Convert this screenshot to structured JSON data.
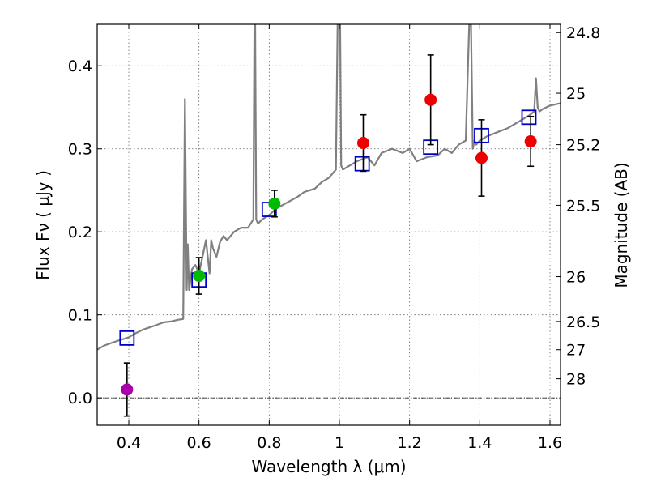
{
  "chart_data": {
    "type": "scatter",
    "title": "",
    "xlabel": "Wavelength  λ (μm)",
    "ylabel": "Flux  Fν  ( μJy )",
    "y2label": "Magnitude (AB)",
    "xlim": [
      0.31,
      1.63
    ],
    "ylim": [
      -0.033,
      0.45
    ],
    "grid": true,
    "x_ticks": [
      0.4,
      0.6,
      0.8,
      1.0,
      1.2,
      1.4,
      1.6
    ],
    "x_tick_labels": [
      "0.4",
      "0.6",
      "0.8",
      "1",
      "1.2",
      "1.4",
      "1.6"
    ],
    "y_ticks": [
      0.0,
      0.1,
      0.2,
      0.3,
      0.4
    ],
    "y_tick_labels": [
      "0.0",
      "0.1",
      "0.2",
      "0.3",
      "0.4"
    ],
    "y2_ticks": [
      {
        "label": "24.8",
        "flux": 0.44
      },
      {
        "label": "25",
        "flux": 0.367
      },
      {
        "label": "25.2",
        "flux": 0.305
      },
      {
        "label": "25.5",
        "flux": 0.232
      },
      {
        "label": "26",
        "flux": 0.146
      },
      {
        "label": "26.5",
        "flux": 0.092
      },
      {
        "label": "27",
        "flux": 0.058
      },
      {
        "label": "28",
        "flux": 0.023
      }
    ],
    "zero_line": 0.0,
    "series": [
      {
        "name": "model spectrum",
        "kind": "line",
        "color": "#808080",
        "x": [
          0.31,
          0.33,
          0.35,
          0.37,
          0.4,
          0.42,
          0.44,
          0.46,
          0.48,
          0.5,
          0.52,
          0.54,
          0.555,
          0.56,
          0.565,
          0.568,
          0.572,
          0.58,
          0.59,
          0.6,
          0.61,
          0.62,
          0.63,
          0.635,
          0.64,
          0.65,
          0.66,
          0.67,
          0.68,
          0.7,
          0.72,
          0.74,
          0.755,
          0.758,
          0.76,
          0.763,
          0.768,
          0.78,
          0.8,
          0.82,
          0.85,
          0.88,
          0.9,
          0.93,
          0.95,
          0.97,
          0.99,
          0.995,
          0.998,
          1.0,
          1.002,
          1.005,
          1.01,
          1.03,
          1.05,
          1.08,
          1.1,
          1.12,
          1.15,
          1.18,
          1.2,
          1.22,
          1.25,
          1.28,
          1.3,
          1.32,
          1.34,
          1.36,
          1.37,
          1.375,
          1.38,
          1.385,
          1.39,
          1.4,
          1.42,
          1.45,
          1.48,
          1.5,
          1.52,
          1.54,
          1.555,
          1.56,
          1.565,
          1.57,
          1.58,
          1.6,
          1.63
        ],
        "y": [
          0.058,
          0.063,
          0.066,
          0.069,
          0.073,
          0.078,
          0.082,
          0.085,
          0.088,
          0.091,
          0.092,
          0.094,
          0.095,
          0.36,
          0.13,
          0.185,
          0.13,
          0.155,
          0.16,
          0.15,
          0.17,
          0.19,
          0.15,
          0.19,
          0.18,
          0.17,
          0.188,
          0.195,
          0.19,
          0.2,
          0.205,
          0.205,
          0.215,
          0.45,
          0.45,
          0.215,
          0.21,
          0.215,
          0.22,
          0.228,
          0.235,
          0.242,
          0.248,
          0.252,
          0.26,
          0.265,
          0.275,
          0.45,
          0.45,
          0.45,
          0.45,
          0.28,
          0.275,
          0.28,
          0.285,
          0.29,
          0.28,
          0.295,
          0.3,
          0.295,
          0.3,
          0.285,
          0.29,
          0.292,
          0.3,
          0.295,
          0.305,
          0.31,
          0.45,
          0.45,
          0.3,
          0.31,
          0.305,
          0.31,
          0.315,
          0.32,
          0.325,
          0.33,
          0.335,
          0.34,
          0.345,
          0.385,
          0.35,
          0.345,
          0.348,
          0.352,
          0.355
        ]
      },
      {
        "name": "model photometry",
        "kind": "open-square",
        "color": "#0000cc",
        "x": [
          0.395,
          0.6,
          0.8,
          1.065,
          1.26,
          1.405,
          1.54
        ],
        "y": [
          0.072,
          0.142,
          0.227,
          0.282,
          0.302,
          0.316,
          0.338
        ]
      },
      {
        "name": "observed (violet)",
        "kind": "filled-circle",
        "color": "#aa00aa",
        "x": [
          0.395
        ],
        "y": [
          0.01
        ],
        "err": [
          0.032
        ]
      },
      {
        "name": "observed (green)",
        "kind": "filled-circle",
        "color": "#00bb00",
        "x": [
          0.6,
          0.815
        ],
        "y": [
          0.147,
          0.234
        ],
        "err": [
          0.022,
          0.016
        ]
      },
      {
        "name": "observed (red)",
        "kind": "filled-circle",
        "color": "#ee0000",
        "x": [
          1.068,
          1.26,
          1.405,
          1.545
        ],
        "y": [
          0.307,
          0.359,
          0.289,
          0.309
        ],
        "err": [
          0.034,
          0.054,
          0.046,
          0.03
        ]
      }
    ]
  }
}
